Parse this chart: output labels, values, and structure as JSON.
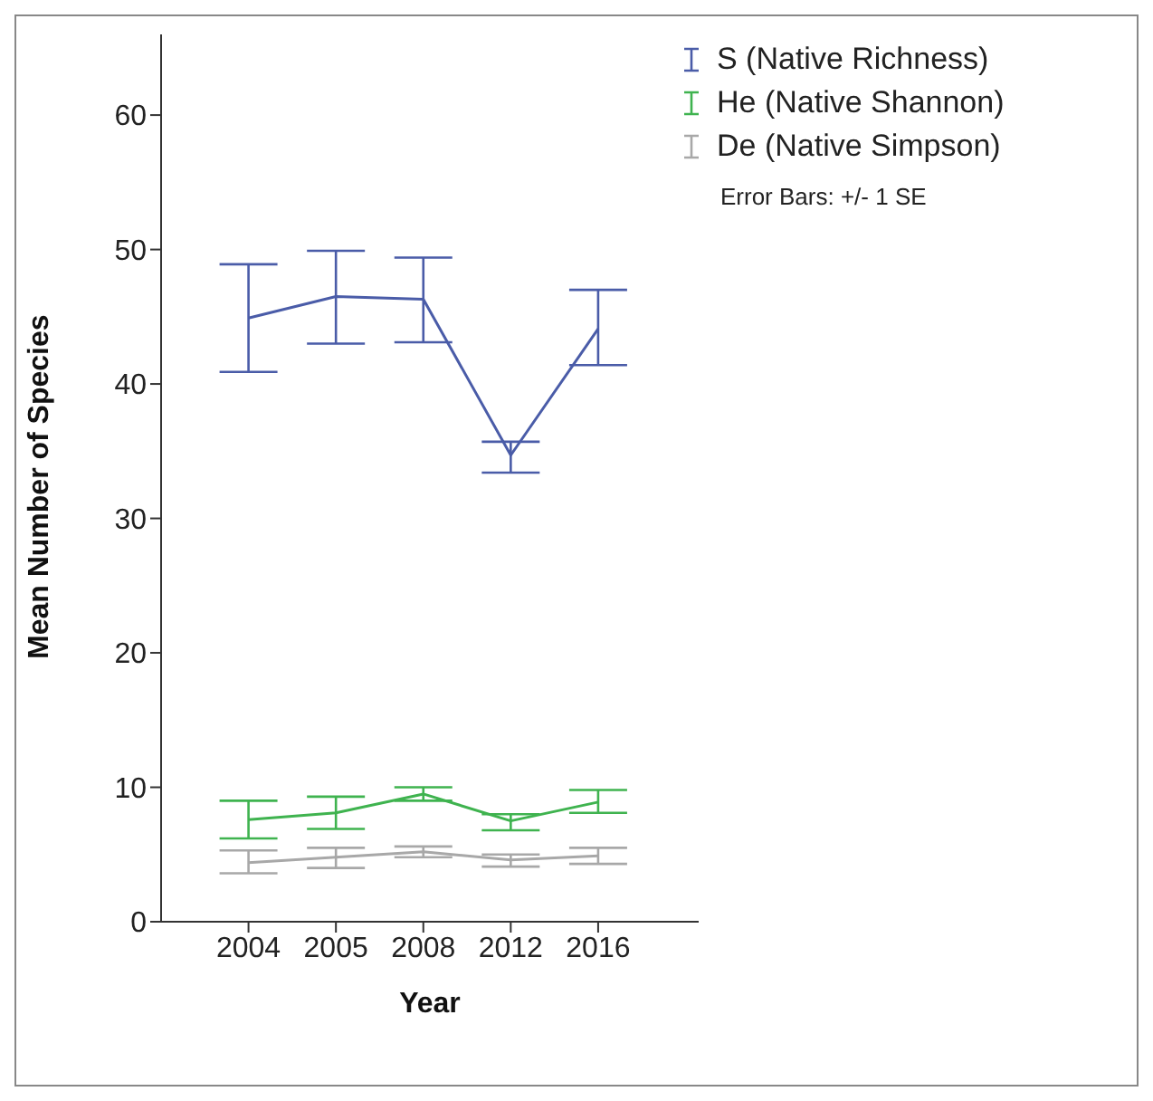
{
  "chart_data": {
    "type": "line",
    "xlabel": "Year",
    "ylabel": "Mean Number of Species",
    "categories": [
      "2004",
      "2005",
      "2008",
      "2012",
      "2016"
    ],
    "series": [
      {
        "name": "S (Native Richness)",
        "color": "#4a5ca8",
        "values": [
          44.9,
          46.5,
          46.3,
          34.7,
          44.1
        ],
        "errors": [
          [
            40.9,
            48.9
          ],
          [
            43.0,
            49.9
          ],
          [
            43.1,
            49.4
          ],
          [
            33.4,
            35.7
          ],
          [
            41.4,
            47.0
          ]
        ]
      },
      {
        "name": "He (Native Shannon)",
        "color": "#3fb34f",
        "values": [
          7.6,
          8.1,
          9.5,
          7.5,
          8.9
        ],
        "errors": [
          [
            6.2,
            9.0
          ],
          [
            6.9,
            9.3
          ],
          [
            9.0,
            10.0
          ],
          [
            6.8,
            8.0
          ],
          [
            8.1,
            9.8
          ]
        ]
      },
      {
        "name": "De (Native Simpson)",
        "color": "#a8a8a8",
        "values": [
          4.4,
          4.8,
          5.2,
          4.6,
          4.9
        ],
        "errors": [
          [
            3.6,
            5.3
          ],
          [
            4.0,
            5.5
          ],
          [
            4.8,
            5.6
          ],
          [
            4.1,
            5.0
          ],
          [
            4.3,
            5.5
          ]
        ]
      }
    ],
    "ylim": [
      0,
      66
    ],
    "yticks": [
      0,
      10,
      20,
      30,
      40,
      50,
      60
    ],
    "grid": false,
    "legend": "top right",
    "marker": "none",
    "line_style": "solid",
    "annotations": [
      "Error Bars: +/- 1 SE"
    ]
  }
}
